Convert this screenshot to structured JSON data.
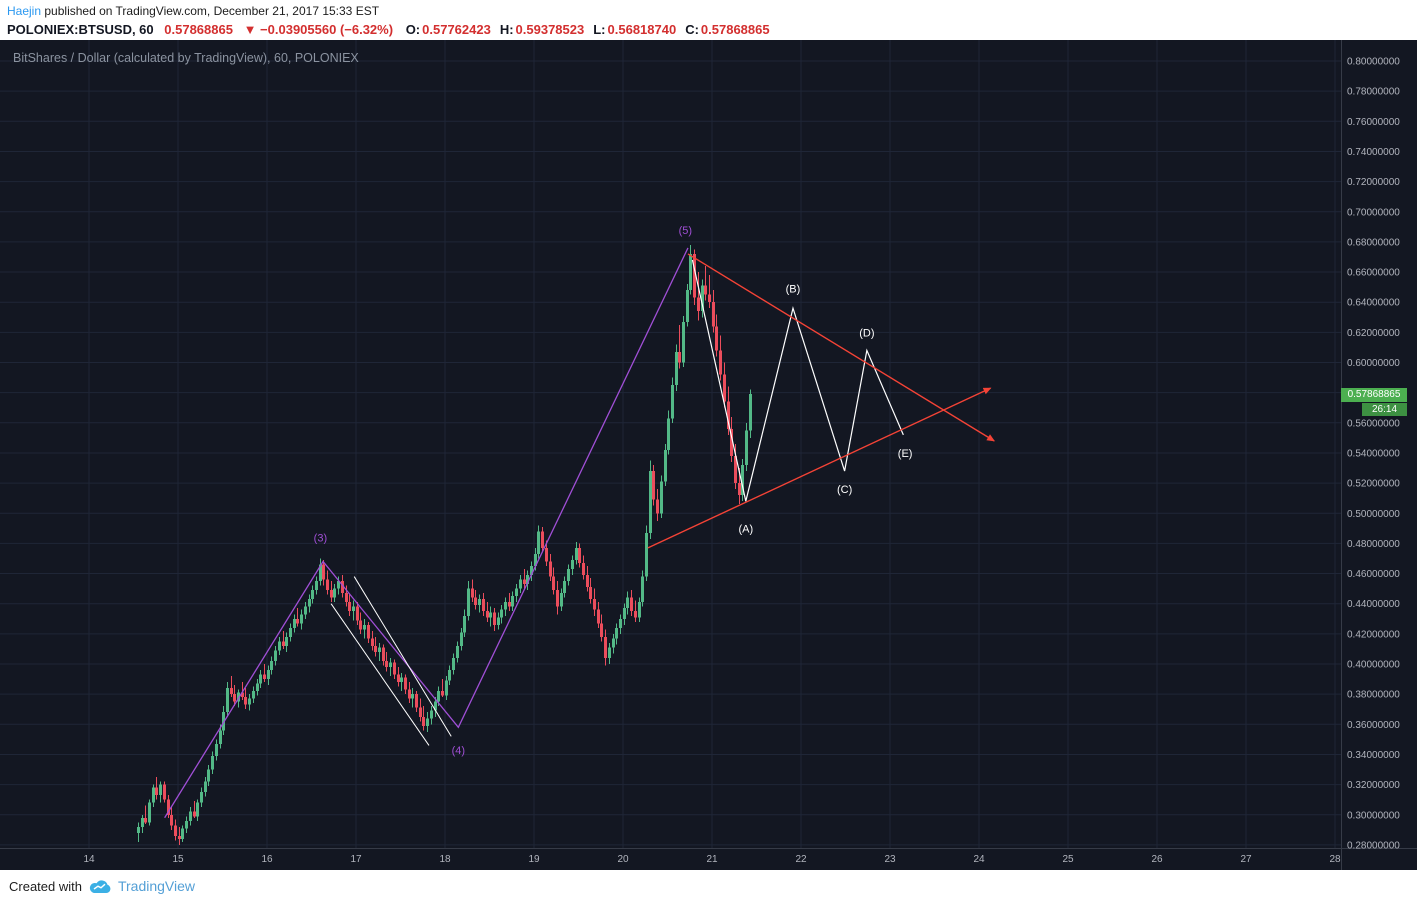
{
  "colors": {
    "link_blue": "#2b98f0",
    "value_red": "#d32f2f",
    "brand_blue": "#539fd6"
  },
  "header": {
    "author": "Haejin",
    "published_text": "published on TradingView.com, December 21, 2017 15:33 EST",
    "symbol_line": {
      "symbol": "POLONIEX:BTSUSD, 60",
      "last": "0.57868865",
      "change": "▼ −0.03905560 (−6.32%)",
      "ohlc": [
        {
          "label": "O:",
          "value": "0.57762423"
        },
        {
          "label": "H:",
          "value": "0.59378523"
        },
        {
          "label": "L:",
          "value": "0.56818740"
        },
        {
          "label": "C:",
          "value": "0.57868865"
        }
      ]
    }
  },
  "chart": {
    "title": "BitShares / Dollar (calculated by TradingView), 60, POLONIEX",
    "price_label": "0.57868865",
    "countdown": "26:14",
    "y_ticks": [
      "0.80000000",
      "0.78000000",
      "0.76000000",
      "0.74000000",
      "0.72000000",
      "0.70000000",
      "0.68000000",
      "0.66000000",
      "0.64000000",
      "0.62000000",
      "0.60000000",
      "0.58000000",
      "0.56000000",
      "0.54000000",
      "0.52000000",
      "0.50000000",
      "0.48000000",
      "0.46000000",
      "0.44000000",
      "0.42000000",
      "0.40000000",
      "0.38000000",
      "0.36000000",
      "0.34000000",
      "0.32000000",
      "0.30000000",
      "0.28000000"
    ],
    "x_ticks": [
      "14",
      "15",
      "16",
      "17",
      "18",
      "19",
      "20",
      "21",
      "22",
      "23",
      "24",
      "25",
      "26",
      "27",
      "28"
    ]
  },
  "chart_data": {
    "type": "candlestick",
    "symbol": "POLONIEX:BTSUSD",
    "interval_minutes": 60,
    "x_unit": "day_of_december_2017",
    "x_range": [
      14,
      28
    ],
    "y_range": [
      0.272,
      0.812
    ],
    "y_step": 0.02,
    "t0": 14.55,
    "dt": 0.04166667,
    "colors": {
      "up": "#53b987",
      "down": "#eb4d5c",
      "background": "#131722",
      "grid": "#1f2637",
      "axis_text": "#b2b5be",
      "purple": "#a04fd6",
      "white": "#ffffff",
      "red": "#f44336",
      "price_label_bg": "#4caf50",
      "countdown_bg": "#3d9142"
    },
    "candles": [
      [
        0.288,
        0.295,
        0.282,
        0.292
      ],
      [
        0.292,
        0.3,
        0.288,
        0.298
      ],
      [
        0.298,
        0.306,
        0.294,
        0.295
      ],
      [
        0.295,
        0.31,
        0.293,
        0.308
      ],
      [
        0.308,
        0.32,
        0.305,
        0.318
      ],
      [
        0.318,
        0.325,
        0.31,
        0.313
      ],
      [
        0.313,
        0.322,
        0.308,
        0.32
      ],
      [
        0.32,
        0.322,
        0.308,
        0.31
      ],
      [
        0.31,
        0.313,
        0.298,
        0.3
      ],
      [
        0.3,
        0.305,
        0.29,
        0.293
      ],
      [
        0.293,
        0.297,
        0.283,
        0.286
      ],
      [
        0.286,
        0.292,
        0.28,
        0.284
      ],
      [
        0.284,
        0.293,
        0.282,
        0.291
      ],
      [
        0.291,
        0.299,
        0.288,
        0.296
      ],
      [
        0.296,
        0.305,
        0.293,
        0.302
      ],
      [
        0.302,
        0.309,
        0.298,
        0.299
      ],
      [
        0.299,
        0.31,
        0.296,
        0.308
      ],
      [
        0.308,
        0.318,
        0.305,
        0.315
      ],
      [
        0.315,
        0.325,
        0.312,
        0.322
      ],
      [
        0.322,
        0.333,
        0.319,
        0.33
      ],
      [
        0.33,
        0.342,
        0.327,
        0.339
      ],
      [
        0.339,
        0.35,
        0.336,
        0.347
      ],
      [
        0.347,
        0.36,
        0.344,
        0.356
      ],
      [
        0.356,
        0.372,
        0.353,
        0.368
      ],
      [
        0.368,
        0.388,
        0.365,
        0.384
      ],
      [
        0.384,
        0.392,
        0.378,
        0.38
      ],
      [
        0.38,
        0.386,
        0.372,
        0.375
      ],
      [
        0.375,
        0.383,
        0.371,
        0.381
      ],
      [
        0.381,
        0.388,
        0.376,
        0.378
      ],
      [
        0.378,
        0.384,
        0.37,
        0.373
      ],
      [
        0.373,
        0.38,
        0.369,
        0.377
      ],
      [
        0.377,
        0.385,
        0.374,
        0.382
      ],
      [
        0.382,
        0.39,
        0.379,
        0.387
      ],
      [
        0.387,
        0.396,
        0.384,
        0.393
      ],
      [
        0.393,
        0.4,
        0.388,
        0.39
      ],
      [
        0.39,
        0.399,
        0.386,
        0.396
      ],
      [
        0.396,
        0.405,
        0.393,
        0.402
      ],
      [
        0.402,
        0.412,
        0.399,
        0.409
      ],
      [
        0.409,
        0.418,
        0.406,
        0.415
      ],
      [
        0.415,
        0.422,
        0.41,
        0.412
      ],
      [
        0.412,
        0.421,
        0.408,
        0.418
      ],
      [
        0.418,
        0.427,
        0.415,
        0.424
      ],
      [
        0.424,
        0.433,
        0.421,
        0.43
      ],
      [
        0.43,
        0.437,
        0.425,
        0.427
      ],
      [
        0.427,
        0.436,
        0.423,
        0.433
      ],
      [
        0.433,
        0.441,
        0.43,
        0.438
      ],
      [
        0.438,
        0.446,
        0.434,
        0.443
      ],
      [
        0.443,
        0.452,
        0.44,
        0.449
      ],
      [
        0.449,
        0.458,
        0.446,
        0.455
      ],
      [
        0.455,
        0.47,
        0.452,
        0.466
      ],
      [
        0.466,
        0.469,
        0.452,
        0.456
      ],
      [
        0.456,
        0.462,
        0.446,
        0.449
      ],
      [
        0.449,
        0.455,
        0.441,
        0.444
      ],
      [
        0.444,
        0.453,
        0.441,
        0.45
      ],
      [
        0.45,
        0.458,
        0.446,
        0.455
      ],
      [
        0.455,
        0.459,
        0.444,
        0.447
      ],
      [
        0.447,
        0.452,
        0.438,
        0.441
      ],
      [
        0.441,
        0.446,
        0.432,
        0.435
      ],
      [
        0.435,
        0.442,
        0.429,
        0.438
      ],
      [
        0.438,
        0.441,
        0.426,
        0.429
      ],
      [
        0.429,
        0.434,
        0.42,
        0.423
      ],
      [
        0.423,
        0.43,
        0.417,
        0.426
      ],
      [
        0.426,
        0.428,
        0.414,
        0.417
      ],
      [
        0.417,
        0.422,
        0.409,
        0.412
      ],
      [
        0.412,
        0.418,
        0.405,
        0.408
      ],
      [
        0.408,
        0.414,
        0.402,
        0.411
      ],
      [
        0.411,
        0.413,
        0.399,
        0.402
      ],
      [
        0.402,
        0.408,
        0.395,
        0.398
      ],
      [
        0.398,
        0.404,
        0.392,
        0.401
      ],
      [
        0.401,
        0.403,
        0.39,
        0.393
      ],
      [
        0.393,
        0.398,
        0.385,
        0.388
      ],
      [
        0.388,
        0.394,
        0.382,
        0.391
      ],
      [
        0.391,
        0.393,
        0.38,
        0.383
      ],
      [
        0.383,
        0.388,
        0.374,
        0.377
      ],
      [
        0.377,
        0.384,
        0.371,
        0.38
      ],
      [
        0.38,
        0.382,
        0.368,
        0.371
      ],
      [
        0.371,
        0.377,
        0.362,
        0.365
      ],
      [
        0.365,
        0.372,
        0.356,
        0.359
      ],
      [
        0.359,
        0.368,
        0.355,
        0.364
      ],
      [
        0.364,
        0.372,
        0.36,
        0.369
      ],
      [
        0.369,
        0.378,
        0.365,
        0.375
      ],
      [
        0.375,
        0.385,
        0.372,
        0.382
      ],
      [
        0.382,
        0.39,
        0.378,
        0.379
      ],
      [
        0.379,
        0.392,
        0.376,
        0.389
      ],
      [
        0.389,
        0.399,
        0.386,
        0.396
      ],
      [
        0.396,
        0.407,
        0.393,
        0.404
      ],
      [
        0.404,
        0.415,
        0.401,
        0.412
      ],
      [
        0.412,
        0.424,
        0.409,
        0.421
      ],
      [
        0.421,
        0.436,
        0.418,
        0.432
      ],
      [
        0.432,
        0.455,
        0.429,
        0.45
      ],
      [
        0.45,
        0.456,
        0.441,
        0.444
      ],
      [
        0.444,
        0.449,
        0.436,
        0.439
      ],
      [
        0.439,
        0.446,
        0.434,
        0.443
      ],
      [
        0.443,
        0.447,
        0.432,
        0.435
      ],
      [
        0.435,
        0.441,
        0.428,
        0.431
      ],
      [
        0.431,
        0.438,
        0.425,
        0.434
      ],
      [
        0.434,
        0.437,
        0.422,
        0.426
      ],
      [
        0.426,
        0.434,
        0.423,
        0.431
      ],
      [
        0.431,
        0.439,
        0.427,
        0.436
      ],
      [
        0.436,
        0.444,
        0.432,
        0.441
      ],
      [
        0.441,
        0.447,
        0.435,
        0.438
      ],
      [
        0.438,
        0.448,
        0.435,
        0.445
      ],
      [
        0.445,
        0.453,
        0.441,
        0.45
      ],
      [
        0.45,
        0.459,
        0.447,
        0.456
      ],
      [
        0.456,
        0.463,
        0.45,
        0.453
      ],
      [
        0.453,
        0.462,
        0.449,
        0.459
      ],
      [
        0.459,
        0.468,
        0.455,
        0.465
      ],
      [
        0.465,
        0.477,
        0.462,
        0.473
      ],
      [
        0.473,
        0.492,
        0.47,
        0.488
      ],
      [
        0.488,
        0.491,
        0.474,
        0.477
      ],
      [
        0.477,
        0.482,
        0.465,
        0.468
      ],
      [
        0.468,
        0.473,
        0.455,
        0.458
      ],
      [
        0.458,
        0.464,
        0.446,
        0.449
      ],
      [
        0.449,
        0.455,
        0.433,
        0.438
      ],
      [
        0.438,
        0.45,
        0.435,
        0.447
      ],
      [
        0.447,
        0.458,
        0.444,
        0.455
      ],
      [
        0.455,
        0.466,
        0.452,
        0.463
      ],
      [
        0.463,
        0.472,
        0.459,
        0.469
      ],
      [
        0.469,
        0.481,
        0.466,
        0.477
      ],
      [
        0.477,
        0.48,
        0.464,
        0.467
      ],
      [
        0.467,
        0.472,
        0.456,
        0.459
      ],
      [
        0.459,
        0.465,
        0.448,
        0.451
      ],
      [
        0.451,
        0.457,
        0.44,
        0.443
      ],
      [
        0.443,
        0.45,
        0.432,
        0.436
      ],
      [
        0.436,
        0.441,
        0.424,
        0.427
      ],
      [
        0.427,
        0.433,
        0.415,
        0.418
      ],
      [
        0.418,
        0.423,
        0.399,
        0.404
      ],
      [
        0.404,
        0.414,
        0.4,
        0.411
      ],
      [
        0.411,
        0.42,
        0.407,
        0.417
      ],
      [
        0.417,
        0.427,
        0.413,
        0.424
      ],
      [
        0.424,
        0.433,
        0.42,
        0.43
      ],
      [
        0.43,
        0.44,
        0.426,
        0.437
      ],
      [
        0.437,
        0.448,
        0.433,
        0.444
      ],
      [
        0.444,
        0.449,
        0.432,
        0.435
      ],
      [
        0.435,
        0.442,
        0.428,
        0.431
      ],
      [
        0.431,
        0.444,
        0.428,
        0.441
      ],
      [
        0.441,
        0.462,
        0.438,
        0.458
      ],
      [
        0.458,
        0.492,
        0.455,
        0.487
      ],
      [
        0.487,
        0.535,
        0.483,
        0.528
      ],
      [
        0.528,
        0.532,
        0.505,
        0.509
      ],
      [
        0.509,
        0.516,
        0.495,
        0.5
      ],
      [
        0.5,
        0.525,
        0.497,
        0.521
      ],
      [
        0.521,
        0.546,
        0.518,
        0.542
      ],
      [
        0.542,
        0.568,
        0.539,
        0.563
      ],
      [
        0.563,
        0.59,
        0.56,
        0.585
      ],
      [
        0.585,
        0.612,
        0.581,
        0.607
      ],
      [
        0.607,
        0.625,
        0.596,
        0.6
      ],
      [
        0.6,
        0.631,
        0.597,
        0.627
      ],
      [
        0.627,
        0.652,
        0.624,
        0.648
      ],
      [
        0.648,
        0.678,
        0.645,
        0.672
      ],
      [
        0.672,
        0.675,
        0.638,
        0.643
      ],
      [
        0.643,
        0.66,
        0.628,
        0.634
      ],
      [
        0.634,
        0.655,
        0.63,
        0.651
      ],
      [
        0.651,
        0.664,
        0.641,
        0.645
      ],
      [
        0.645,
        0.658,
        0.636,
        0.64
      ],
      [
        0.64,
        0.648,
        0.62,
        0.624
      ],
      [
        0.624,
        0.632,
        0.604,
        0.608
      ],
      [
        0.608,
        0.618,
        0.588,
        0.592
      ],
      [
        0.592,
        0.6,
        0.57,
        0.574
      ],
      [
        0.574,
        0.584,
        0.552,
        0.556
      ],
      [
        0.556,
        0.564,
        0.534,
        0.538
      ],
      [
        0.538,
        0.546,
        0.516,
        0.52
      ],
      [
        0.52,
        0.53,
        0.506,
        0.512
      ],
      [
        0.512,
        0.536,
        0.508,
        0.532
      ],
      [
        0.532,
        0.56,
        0.528,
        0.555
      ],
      [
        0.555,
        0.582,
        0.55,
        0.579
      ]
    ],
    "annotations": {
      "purple_impulse": {
        "points": [
          [
            14.85,
            0.298
          ],
          [
            16.63,
            0.468
          ],
          [
            18.15,
            0.358
          ],
          [
            20.73,
            0.676
          ]
        ]
      },
      "purple_labels": [
        {
          "text": "(3)",
          "at": [
            16.6,
            0.484
          ]
        },
        {
          "text": "(4)",
          "at": [
            18.15,
            0.343
          ]
        },
        {
          "text": "(5)",
          "at": [
            20.7,
            0.688
          ]
        }
      ],
      "white_channel": [
        {
          "points": [
            [
              16.98,
              0.458
            ],
            [
              18.07,
              0.352
            ]
          ]
        },
        {
          "points": [
            [
              16.72,
              0.44
            ],
            [
              17.82,
              0.346
            ]
          ]
        }
      ],
      "white_zigzag": {
        "points": [
          [
            20.78,
            0.668
          ],
          [
            21.38,
            0.508
          ],
          [
            21.91,
            0.636
          ],
          [
            22.49,
            0.528
          ],
          [
            22.74,
            0.608
          ],
          [
            23.15,
            0.552
          ]
        ]
      },
      "white_labels": [
        {
          "text": "(A)",
          "at": [
            21.38,
            0.49
          ]
        },
        {
          "text": "(B)",
          "at": [
            21.91,
            0.649
          ]
        },
        {
          "text": "(C)",
          "at": [
            22.49,
            0.516
          ]
        },
        {
          "text": "(D)",
          "at": [
            22.74,
            0.62
          ]
        },
        {
          "text": "(E)",
          "at": [
            23.17,
            0.54
          ]
        }
      ],
      "red_trendlines": [
        {
          "points": [
            [
              20.73,
              0.672
            ],
            [
              24.17,
              0.548
            ]
          ]
        },
        {
          "points": [
            [
              20.28,
              0.477
            ],
            [
              24.13,
              0.583
            ]
          ]
        }
      ]
    }
  },
  "footer": {
    "created_with": "Created with",
    "brand": "TradingView"
  }
}
